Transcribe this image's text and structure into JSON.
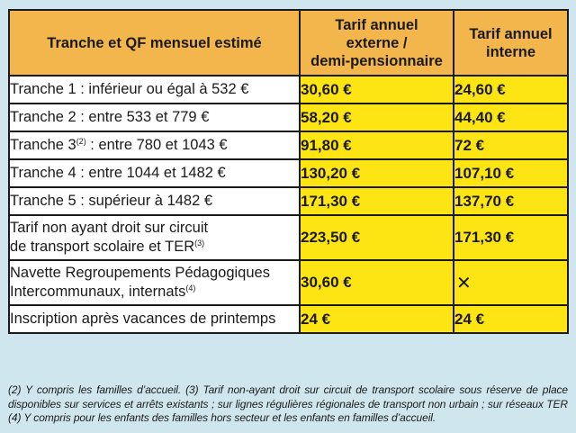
{
  "header": {
    "col1": "Tranche et QF mensuel estimé",
    "col2_line1": "Tarif annuel",
    "col2_line2": "externe /",
    "col2_line3": "demi-pensionnaire",
    "col3_line1": "Tarif annuel",
    "col3_line2": "interne"
  },
  "rows": [
    {
      "label": "Tranche 1 : inférieur ou égal à 532 €",
      "externe": "30,60 €",
      "interne": "24,60 €"
    },
    {
      "label": "Tranche 2 : entre 533 et 779 €",
      "externe": "58,20 €",
      "interne": "44,40 €"
    },
    {
      "label_pre": "Tranche 3",
      "label_sup": "(2)",
      "label_post": " : entre 780 et 1043 €",
      "externe": "91,80 €",
      "interne": "72 €"
    },
    {
      "label": "Tranche 4 : entre 1044 et 1482 €",
      "externe": "130,20 €",
      "interne": "107,10 €"
    },
    {
      "label": "Tranche 5 : supérieur à 1482 €",
      "externe": "171,30 €",
      "interne": "137,70 €"
    },
    {
      "label_line1": "Tarif non ayant droit sur circuit",
      "label_line2": "de transport scolaire et TER",
      "label_sup": "(3)",
      "externe": "223,50 €",
      "interne": "171,30 €"
    },
    {
      "label_line1": "Navette Regroupements Pédagogiques",
      "label_line2": "Intercommunaux, internats",
      "label_sup": "(4)",
      "externe": "30,60 €",
      "interne": "✕"
    },
    {
      "label": "Inscription après vacances de printemps",
      "externe": "24 €",
      "interne": "24 €"
    }
  ],
  "footnote": "(2) Y compris les familles d’accueil. (3) Tarif non-ayant droit sur circuit de transport scolaire sous réserve de place disponibles sur services et arrêts existants ; sur lignes régulières régionales de transport non urbain ; sur réseaux TER (4) Y compris pour les enfants des familles hors secteur et les enfants en familles d’accueil.",
  "colors": {
    "header_bg": "#f3b64d",
    "value_bg": "#fde513",
    "page_bg": "#cfe6ee",
    "label_bg": "#ffffff"
  },
  "icons": {
    "not_available": "x-mark-icon"
  }
}
